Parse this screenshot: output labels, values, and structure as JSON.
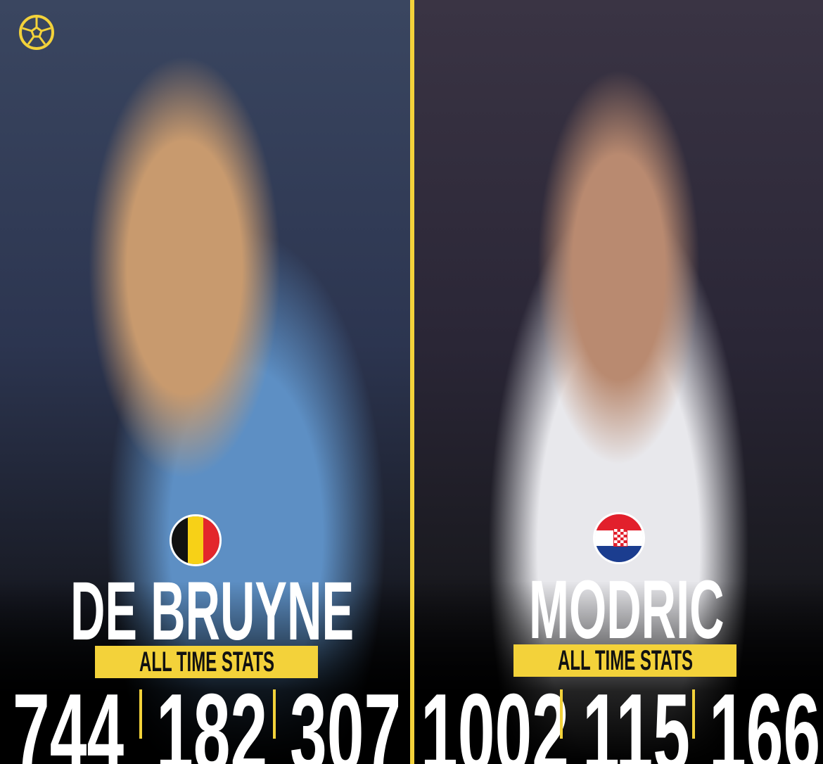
{
  "brand": {
    "logo_icon": "football-icon",
    "accent_color": "#f3d23a"
  },
  "players": [
    {
      "name": "DE BRUYNE",
      "flag": "belgium-flag-icon",
      "badge": "ALL TIME STATS",
      "stats": [
        "744",
        "182",
        "307"
      ]
    },
    {
      "name": "MODRIC",
      "flag": "croatia-flag-icon",
      "badge": "ALL TIME STATS",
      "stats": [
        "1002",
        "115",
        "166"
      ]
    }
  ]
}
